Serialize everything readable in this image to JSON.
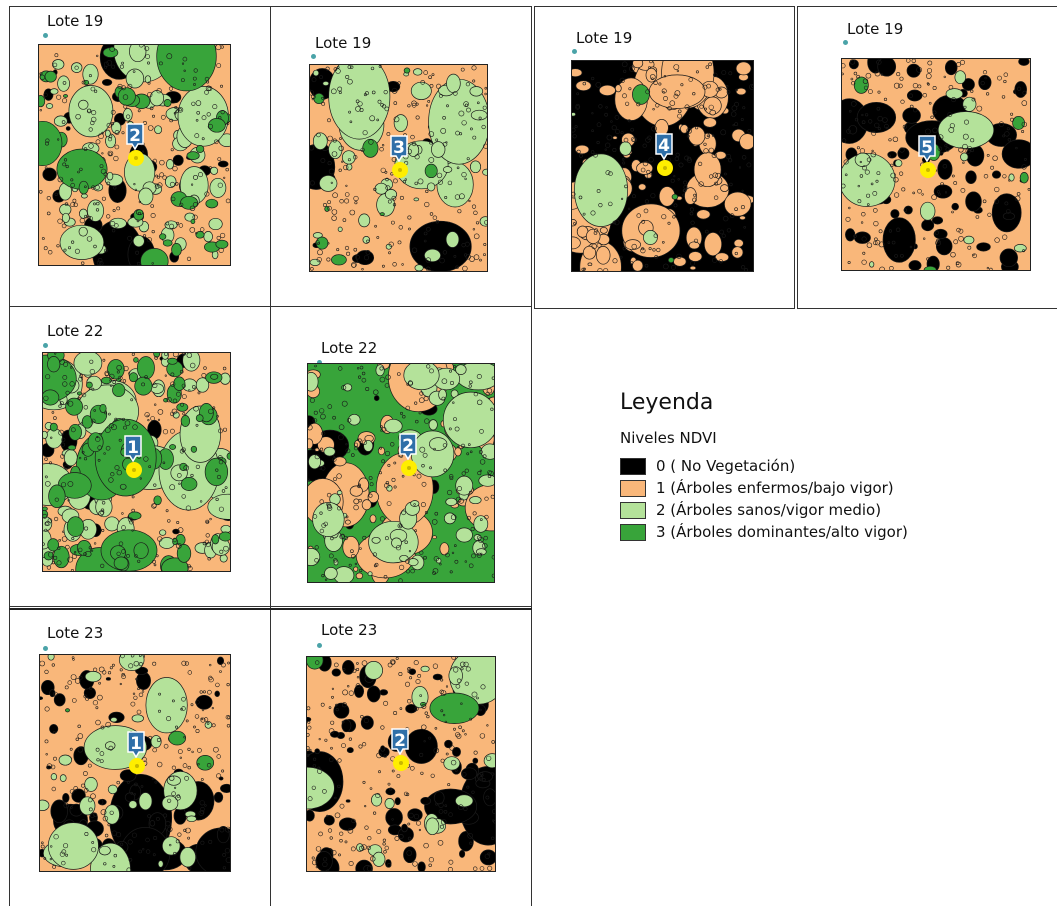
{
  "colors": {
    "class0": "#000000",
    "class1": "#f9b77a",
    "class2": "#b4e29a",
    "class3": "#38a43a",
    "marker": "#ffee00",
    "badge": "#2f6fa8",
    "lote_dot": "#4aa3a8"
  },
  "panels": [
    {
      "lote": "Lote 19",
      "number": "2",
      "mix": [
        0.12,
        0.4,
        0.33,
        0.15
      ]
    },
    {
      "lote": "Lote 19",
      "number": "3",
      "mix": [
        0.05,
        0.72,
        0.2,
        0.03
      ]
    },
    {
      "lote": "Lote 19",
      "number": "4",
      "mix": [
        0.55,
        0.42,
        0.02,
        0.01
      ]
    },
    {
      "lote": "Lote 19",
      "number": "5",
      "mix": [
        0.25,
        0.68,
        0.05,
        0.02
      ]
    },
    {
      "lote": "Lote 22",
      "number": "1",
      "mix": [
        0.06,
        0.32,
        0.3,
        0.32
      ]
    },
    {
      "lote": "Lote 22",
      "number": "2",
      "mix": [
        0.06,
        0.22,
        0.24,
        0.48
      ]
    },
    {
      "lote": "Lote 23",
      "number": "1",
      "mix": [
        0.25,
        0.6,
        0.14,
        0.01
      ]
    },
    {
      "lote": "Lote 23",
      "number": "2",
      "mix": [
        0.35,
        0.57,
        0.07,
        0.01
      ]
    }
  ],
  "legend": {
    "title": "Leyenda",
    "subtitle": "Niveles NDVI",
    "items": [
      {
        "label": "0  ( No Vegetación)",
        "color": "#000000"
      },
      {
        "label": "1 (Árboles enfermos/bajo vigor)",
        "color": "#f9b77a"
      },
      {
        "label": "2 (Árboles sanos/vigor medio)",
        "color": "#b4e29a"
      },
      {
        "label": "3  (Árboles dominantes/alto vigor)",
        "color": "#38a43a"
      }
    ]
  }
}
